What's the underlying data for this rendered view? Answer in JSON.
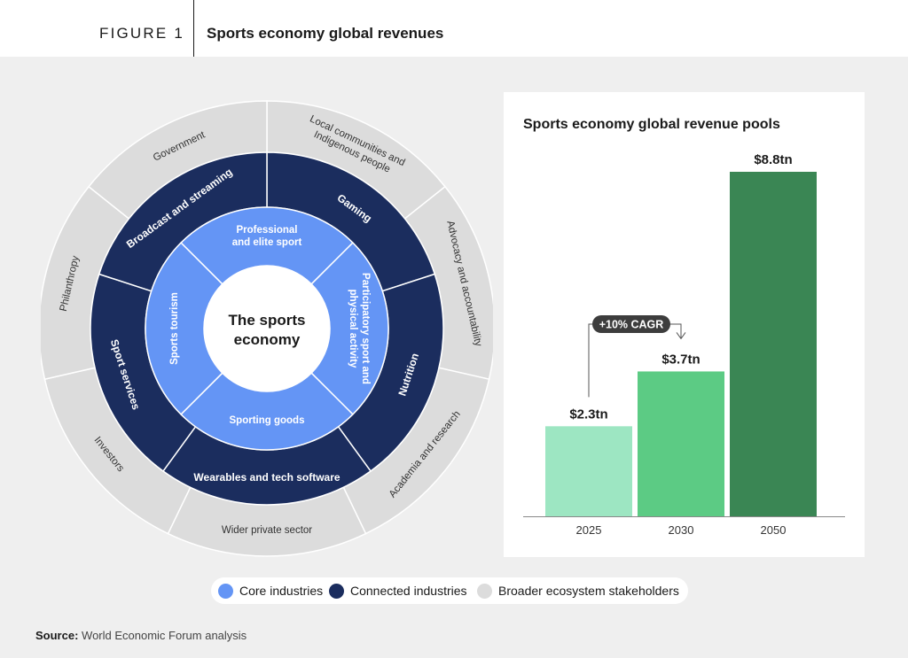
{
  "header": {
    "figure_label": "FIGURE 1",
    "title": "Sports economy global revenues"
  },
  "wheel": {
    "center": [
      "The sports",
      "economy"
    ],
    "core": [
      {
        "label": [
          "Professional",
          "and elite sport"
        ]
      },
      {
        "label": [
          "Participatory sport and",
          "physical activity"
        ]
      },
      {
        "label": [
          "Sporting goods"
        ]
      },
      {
        "label": [
          "Sports tourism"
        ]
      }
    ],
    "connected": [
      {
        "label": "Gaming"
      },
      {
        "label": "Nutrition"
      },
      {
        "label": "Wearables and tech software"
      },
      {
        "label": "Sport services"
      },
      {
        "label": "Broadcast and streaming"
      }
    ],
    "broader": [
      {
        "label": [
          "Local communities and",
          "Indigenous people"
        ]
      },
      {
        "label": [
          "Advocacy and accountability"
        ]
      },
      {
        "label": [
          "Academia and research"
        ]
      },
      {
        "label": [
          "Wider private sector"
        ]
      },
      {
        "label": [
          "Investors"
        ]
      },
      {
        "label": [
          "Philanthropy"
        ]
      },
      {
        "label": [
          "Government"
        ]
      }
    ],
    "colors": {
      "core": "#6495f5",
      "connected": "#1b2d5e",
      "broader": "#dcdcdc",
      "center": "#ffffff"
    }
  },
  "chart_data": {
    "type": "bar",
    "title": "Sports economy global revenue pools",
    "categories": [
      "2025",
      "2030",
      "2050"
    ],
    "values": [
      2.3,
      3.7,
      8.8
    ],
    "value_labels": [
      "$2.3tn",
      "$3.7tn",
      "$8.8tn"
    ],
    "unit": "tn",
    "colors": [
      "#9de6c2",
      "#5ccb84",
      "#3a8654"
    ],
    "ylim": [
      0,
      8.8
    ],
    "annotation": {
      "text": "+10% CAGR",
      "from": "2025",
      "to": "2030"
    },
    "xlabel": "",
    "ylabel": "",
    "grid": false,
    "legend": "none"
  },
  "legend": {
    "items": [
      {
        "label": "Core industries",
        "color": "#6495f5"
      },
      {
        "label": "Connected industries",
        "color": "#1b2d5e"
      },
      {
        "label": "Broader ecosystem stakeholders",
        "color": "#dcdcdc"
      }
    ]
  },
  "source": {
    "prefix": "Source:",
    "text": "World Economic Forum analysis"
  }
}
